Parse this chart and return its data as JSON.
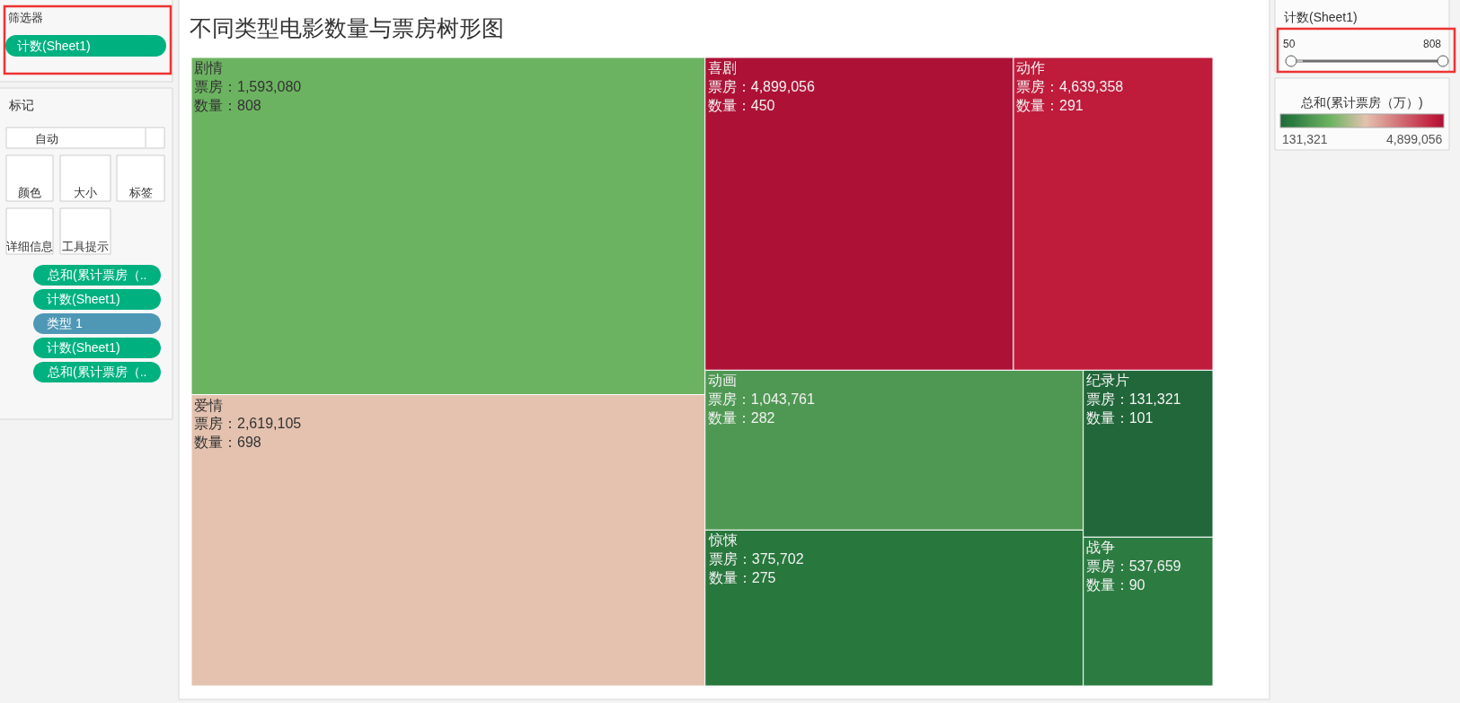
{
  "chart_data": {
    "type": "other",
    "title": "不同类型电影数量与票房树形图",
    "categories": [
      "剧情",
      "爱情",
      "喜剧",
      "动作",
      "动画",
      "惊悚",
      "纪录片",
      "战争"
    ],
    "series": [
      {
        "values": [
          1593080,
          2619105,
          4899056,
          4639358,
          1043761,
          375702,
          131321,
          537659
        ],
        "colors": [
          "#6cb361",
          "#e4c2af",
          "#ad1236",
          "#bf1b3b",
          "#4f9853",
          "#28773d",
          "#22673a",
          "#2c7c42"
        ],
        "value_labels": [
          "票房：1,593,080",
          "票房：2,619,105",
          "票房：4,899,056",
          "票房：4,639,358",
          "票房：1,043,761",
          "票房：375,702",
          "票房：131,321",
          "票房：537,659"
        ]
      },
      {
        "values": [
          808,
          698,
          450,
          291,
          282,
          275,
          101,
          90
        ],
        "value_labels": [
          "数量：808",
          "数量：698",
          "数量：450",
          "数量：291",
          "数量：282",
          "数量：275",
          "数量：101",
          "数量：90"
        ]
      }
    ],
    "clabel": "总和(累计票房（万）)",
    "annotations": [
      "筛选器",
      "计数(Sheet1)",
      "标记",
      "自动",
      "颜色",
      "大小",
      "标签",
      "详细信息",
      "工具提示",
      "总和(累计票房（..",
      "计数(Sheet1)",
      "类型 1",
      "计数(Sheet1)",
      "总和(累计票房（..",
      "计数(Sheet1)",
      "50",
      "808",
      "131,321",
      "4,899,056"
    ]
  }
}
